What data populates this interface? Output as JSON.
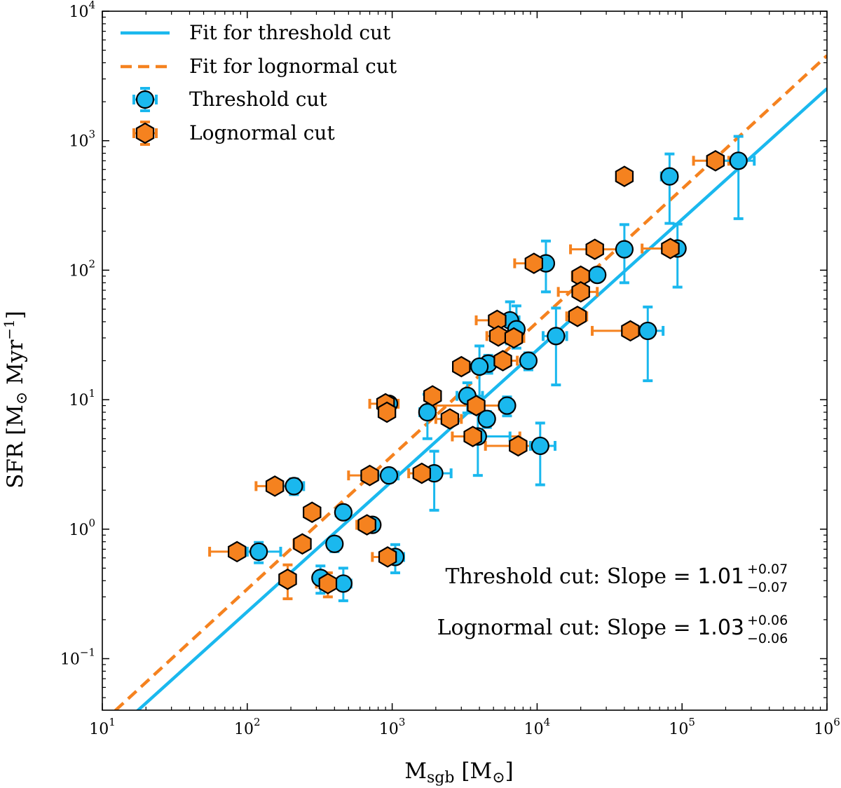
{
  "chart_data": {
    "type": "scatter",
    "title": "",
    "xlabel": "M_sgb [M_⊙]",
    "ylabel": "SFR [M_⊙ Myr^−1]",
    "xlabel_parts": {
      "main": "M",
      "sub": "sgb",
      "unit_open": " [M",
      "unit_close": "]"
    },
    "ylabel_parts": {
      "main": "SFR [M",
      "unit_mid": " Myr",
      "sup": "−1",
      "close": "]"
    },
    "x_scale": "log",
    "y_scale": "log",
    "xlim": [
      10,
      1000000
    ],
    "ylim": [
      0.04,
      10000
    ],
    "x_tick_labels": [
      {
        "base": "10",
        "exp": "1",
        "value": 10
      },
      {
        "base": "10",
        "exp": "2",
        "value": 100
      },
      {
        "base": "10",
        "exp": "3",
        "value": 1000
      },
      {
        "base": "10",
        "exp": "4",
        "value": 10000
      },
      {
        "base": "10",
        "exp": "5",
        "value": 100000
      },
      {
        "base": "10",
        "exp": "6",
        "value": 1000000
      }
    ],
    "y_tick_labels": [
      {
        "base": "10",
        "exp": "−1",
        "value": 0.1
      },
      {
        "base": "10",
        "exp": "0",
        "value": 1
      },
      {
        "base": "10",
        "exp": "1",
        "value": 10
      },
      {
        "base": "10",
        "exp": "2",
        "value": 100
      },
      {
        "base": "10",
        "exp": "3",
        "value": 1000
      },
      {
        "base": "10",
        "exp": "4",
        "value": 10000
      }
    ],
    "grid": false,
    "legend_position": "top-left",
    "legend": [
      {
        "label": "Fit for threshold cut",
        "kind": "solid-line",
        "color": "#1ab8ee"
      },
      {
        "label": "Fit for lognormal cut",
        "kind": "dashed-line",
        "color": "#f5821f"
      },
      {
        "label": "Threshold cut",
        "kind": "circle",
        "color": "#1ab8ee"
      },
      {
        "label": "Lognormal cut",
        "kind": "hexagon",
        "color": "#f5821f"
      }
    ],
    "fits": [
      {
        "name": "Fit for threshold cut",
        "slope": 1.01,
        "amplitude": 0.0022,
        "color": "#1ab8ee",
        "style": "solid"
      },
      {
        "name": "Fit for lognormal cut",
        "slope": 1.03,
        "amplitude": 0.003,
        "color": "#f5821f",
        "style": "dashed"
      }
    ],
    "annotations": [
      {
        "prefix": "Threshold cut: Slope = ",
        "value": "1.01",
        "plus": "+0.07",
        "minus": "−0.07"
      },
      {
        "prefix": "Lognormal cut: Slope = ",
        "value": "1.03",
        "plus": "+0.06",
        "minus": "−0.06"
      }
    ],
    "series": [
      {
        "name": "Threshold cut",
        "marker": "circle",
        "color": "#1ab8ee",
        "points": [
          {
            "x": 245000,
            "y": 700,
            "xerr": [
              55000,
              70000
            ],
            "yerr": [
              450,
              380
            ]
          },
          {
            "x": 82000,
            "y": 530,
            "xerr": [
              10000,
              10000
            ],
            "yerr": [
              300,
              260
            ]
          },
          {
            "x": 40000,
            "y": 145,
            "xerr": [
              4000,
              4000
            ],
            "yerr": [
              65,
              80
            ]
          },
          {
            "x": 93000,
            "y": 147,
            "xerr": [
              8000,
              8000
            ],
            "yerr": [
              73,
              80
            ]
          },
          {
            "x": 26000,
            "y": 92,
            "xerr": [
              2000,
              2000
            ],
            "yerr": [
              8,
              8
            ]
          },
          {
            "x": 11500,
            "y": 113,
            "xerr": [
              1200,
              1200
            ],
            "yerr": [
              45,
              55
            ]
          },
          {
            "x": 58000,
            "y": 34,
            "xerr": [
              13000,
              16000
            ],
            "yerr": [
              20,
              18
            ]
          },
          {
            "x": 13500,
            "y": 31,
            "xerr": [
              2500,
              2500
            ],
            "yerr": [
              18,
              20
            ]
          },
          {
            "x": 6500,
            "y": 41,
            "xerr": [
              800,
              1000
            ],
            "yerr": [
              14,
              16
            ]
          },
          {
            "x": 7200,
            "y": 35,
            "xerr": [
              800,
              800
            ],
            "yerr": [
              10,
              18
            ]
          },
          {
            "x": 8700,
            "y": 20,
            "xerr": [
              800,
              800
            ],
            "yerr": [
              3,
              3
            ]
          },
          {
            "x": 4600,
            "y": 19,
            "xerr": [
              400,
              400
            ],
            "yerr": [
              3,
              3
            ]
          },
          {
            "x": 4000,
            "y": 18,
            "xerr": [
              400,
              400
            ],
            "yerr": [
              8,
              8
            ]
          },
          {
            "x": 10500,
            "y": 4.4,
            "xerr": [
              1500,
              2800
            ],
            "yerr": [
              2.2,
              2.2
            ]
          },
          {
            "x": 6200,
            "y": 9,
            "xerr": [
              600,
              600
            ],
            "yerr": [
              1.5,
              1.5
            ]
          },
          {
            "x": 3300,
            "y": 10.7,
            "xerr": [
              500,
              900
            ],
            "yerr": [
              2.8,
              2.8
            ]
          },
          {
            "x": 4500,
            "y": 7.1,
            "xerr": [
              300,
              300
            ],
            "yerr": [
              1,
              1
            ]
          },
          {
            "x": 1750,
            "y": 8,
            "xerr": [
              200,
              200
            ],
            "yerr": [
              3,
              3
            ]
          },
          {
            "x": 3900,
            "y": 5.2,
            "xerr": [
              500,
              2600
            ],
            "yerr": [
              2.6,
              2.6
            ]
          },
          {
            "x": 950,
            "y": 9.3,
            "xerr": [
              80,
              80
            ],
            "yerr": [
              0.8,
              0.8
            ]
          },
          {
            "x": 1950,
            "y": 2.7,
            "xerr": [
              300,
              600
            ],
            "yerr": [
              1.3,
              1.3
            ]
          },
          {
            "x": 950,
            "y": 2.6,
            "xerr": [
              150,
              150
            ],
            "yerr": [
              0.3,
              0.3
            ]
          },
          {
            "x": 210,
            "y": 2.15,
            "xerr": [
              35,
              35
            ],
            "yerr": [
              0.3,
              0.3
            ]
          },
          {
            "x": 460,
            "y": 1.35,
            "xerr": [
              50,
              50
            ],
            "yerr": [
              0.15,
              0.15
            ]
          },
          {
            "x": 730,
            "y": 1.08,
            "xerr": [
              80,
              80
            ],
            "yerr": [
              0.1,
              0.1
            ]
          },
          {
            "x": 400,
            "y": 0.77,
            "xerr": [
              40,
              40
            ],
            "yerr": [
              0.1,
              0.1
            ]
          },
          {
            "x": 120,
            "y": 0.67,
            "xerr": [
              20,
              50
            ],
            "yerr": [
              0.12,
              0.12
            ]
          },
          {
            "x": 1050,
            "y": 0.61,
            "xerr": [
              100,
              150
            ],
            "yerr": [
              0.15,
              0.15
            ]
          },
          {
            "x": 320,
            "y": 0.42,
            "xerr": [
              30,
              30
            ],
            "yerr": [
              0.1,
              0.1
            ]
          },
          {
            "x": 460,
            "y": 0.38,
            "xerr": [
              60,
              60
            ],
            "yerr": [
              0.1,
              0.12
            ]
          }
        ]
      },
      {
        "name": "Lognormal cut",
        "marker": "hexagon",
        "color": "#f5821f",
        "points": [
          {
            "x": 170000,
            "y": 700,
            "xerr": [
              50000,
              40000
            ],
            "yerr": [
              0,
              0
            ]
          },
          {
            "x": 40000,
            "y": 530,
            "xerr": [
              0,
              0
            ],
            "yerr": [
              0,
              0
            ]
          },
          {
            "x": 25000,
            "y": 145,
            "xerr": [
              8000,
              15000
            ],
            "yerr": [
              0,
              0
            ]
          },
          {
            "x": 83000,
            "y": 147,
            "xerr": [
              30000,
              20000
            ],
            "yerr": [
              0,
              0
            ]
          },
          {
            "x": 20000,
            "y": 90,
            "xerr": [
              2500,
              2500
            ],
            "yerr": [
              0,
              0
            ]
          },
          {
            "x": 9500,
            "y": 113,
            "xerr": [
              2500,
              2000
            ],
            "yerr": [
              0,
              0
            ]
          },
          {
            "x": 20000,
            "y": 68,
            "xerr": [
              6000,
              6000
            ],
            "yerr": [
              0,
              0
            ]
          },
          {
            "x": 19000,
            "y": 44,
            "xerr": [
              3000,
              3000
            ],
            "yerr": [
              0,
              0
            ]
          },
          {
            "x": 44000,
            "y": 34,
            "xerr": [
              20000,
              12000
            ],
            "yerr": [
              0,
              0
            ]
          },
          {
            "x": 5300,
            "y": 41,
            "xerr": [
              1500,
              1500
            ],
            "yerr": [
              0,
              0
            ]
          },
          {
            "x": 5400,
            "y": 31,
            "xerr": [
              900,
              1200
            ],
            "yerr": [
              0,
              0
            ]
          },
          {
            "x": 6900,
            "y": 30,
            "xerr": [
              1200,
              1200
            ],
            "yerr": [
              0,
              0
            ]
          },
          {
            "x": 3000,
            "y": 18,
            "xerr": [
              300,
              300
            ],
            "yerr": [
              0,
              0
            ]
          },
          {
            "x": 5800,
            "y": 20,
            "xerr": [
              1500,
              1500
            ],
            "yerr": [
              0,
              0
            ]
          },
          {
            "x": 3800,
            "y": 9,
            "xerr": [
              1800,
              1700
            ],
            "yerr": [
              0,
              0
            ]
          },
          {
            "x": 1900,
            "y": 10.7,
            "xerr": [
              200,
              200
            ],
            "yerr": [
              0,
              0
            ]
          },
          {
            "x": 2500,
            "y": 7.1,
            "xerr": [
              500,
              500
            ],
            "yerr": [
              0,
              0
            ]
          },
          {
            "x": 900,
            "y": 9.3,
            "xerr": [
              200,
              200
            ],
            "yerr": [
              0,
              0
            ]
          },
          {
            "x": 920,
            "y": 8,
            "xerr": [
              100,
              100
            ],
            "yerr": [
              0,
              0
            ]
          },
          {
            "x": 3600,
            "y": 5.2,
            "xerr": [
              1000,
              4000
            ],
            "yerr": [
              0,
              0
            ]
          },
          {
            "x": 7400,
            "y": 4.4,
            "xerr": [
              3000,
              3000
            ],
            "yerr": [
              0,
              0
            ]
          },
          {
            "x": 1600,
            "y": 2.7,
            "xerr": [
              300,
              300
            ],
            "yerr": [
              0,
              0
            ]
          },
          {
            "x": 700,
            "y": 2.6,
            "xerr": [
              200,
              200
            ],
            "yerr": [
              0,
              0
            ]
          },
          {
            "x": 155,
            "y": 2.15,
            "xerr": [
              40,
              40
            ],
            "yerr": [
              0,
              0
            ]
          },
          {
            "x": 280,
            "y": 1.35,
            "xerr": [
              0,
              0
            ],
            "yerr": [
              0,
              0
            ]
          },
          {
            "x": 670,
            "y": 1.08,
            "xerr": [
              100,
              100
            ],
            "yerr": [
              0,
              0
            ]
          },
          {
            "x": 240,
            "y": 0.77,
            "xerr": [
              30,
              30
            ],
            "yerr": [
              0,
              0
            ]
          },
          {
            "x": 85,
            "y": 0.67,
            "xerr": [
              30,
              30
            ],
            "yerr": [
              0,
              0
            ]
          },
          {
            "x": 930,
            "y": 0.61,
            "xerr": [
              200,
              200
            ],
            "yerr": [
              0,
              0
            ]
          },
          {
            "x": 190,
            "y": 0.41,
            "xerr": [
              0,
              0
            ],
            "yerr": [
              0.12,
              0.12
            ]
          },
          {
            "x": 360,
            "y": 0.38,
            "xerr": [
              60,
              60
            ],
            "yerr": [
              0.08,
              0.08
            ]
          }
        ]
      }
    ]
  }
}
